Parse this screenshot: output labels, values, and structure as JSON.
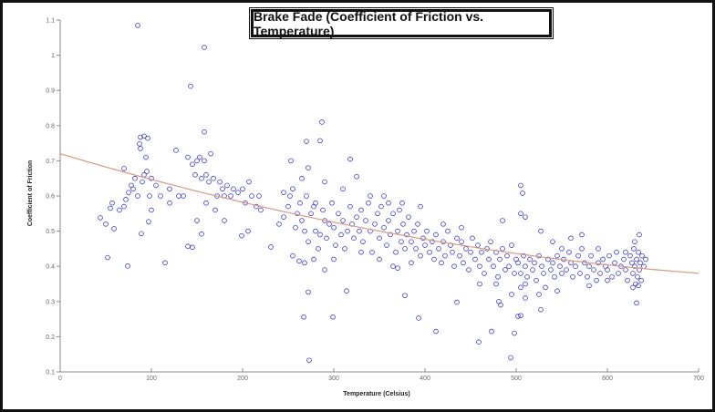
{
  "chart_data": {
    "type": "scatter",
    "title": "Brake Fade (Coefficient of Friction vs. Temperature)",
    "xlabel": "Temperature (Celsius)",
    "ylabel": "Coefficient of Friction",
    "xlim": [
      0,
      700
    ],
    "ylim": [
      0.1,
      1.1
    ],
    "xticks": [
      "0",
      "100",
      "200",
      "300",
      "400",
      "500",
      "600",
      "700"
    ],
    "yticks": [
      "0.1",
      "0.2",
      "0.3",
      "0.4",
      "0.5",
      "0.6",
      "0.7",
      "0.8",
      "0.9",
      "1",
      "1.1"
    ],
    "grid": false,
    "colors": {
      "points": "#3a3ac8",
      "trend": "#d89a80"
    },
    "trend_line": {
      "type": "quadratic",
      "coefficients": {
        "a": 4.08e-07,
        "b": -0.000771,
        "c": 0.72
      }
    },
    "points": [
      [
        85,
        1.085
      ],
      [
        158,
        1.022
      ],
      [
        143,
        0.912
      ],
      [
        287,
        0.81
      ],
      [
        158,
        0.782
      ],
      [
        270,
        0.755
      ],
      [
        285,
        0.757
      ],
      [
        88,
        0.767
      ],
      [
        92,
        0.77
      ],
      [
        96,
        0.764
      ],
      [
        88,
        0.735
      ],
      [
        87,
        0.748
      ],
      [
        94,
        0.71
      ],
      [
        70,
        0.678
      ],
      [
        273,
        0.133
      ],
      [
        267,
        0.256
      ],
      [
        299,
        0.256
      ],
      [
        459,
        0.185
      ],
      [
        494,
        0.14
      ],
      [
        473,
        0.215
      ],
      [
        412,
        0.215
      ],
      [
        498,
        0.21
      ],
      [
        393,
        0.253
      ],
      [
        502,
        0.258
      ],
      [
        272,
        0.327
      ],
      [
        314,
        0.33
      ],
      [
        378,
        0.317
      ],
      [
        435,
        0.298
      ],
      [
        527,
        0.277
      ],
      [
        632,
        0.296
      ],
      [
        52,
        0.425
      ],
      [
        74,
        0.401
      ],
      [
        115,
        0.41
      ],
      [
        44,
        0.538
      ],
      [
        50,
        0.52
      ],
      [
        59,
        0.507
      ],
      [
        97,
        0.527
      ],
      [
        89,
        0.493
      ],
      [
        155,
        0.492
      ],
      [
        140,
        0.457
      ],
      [
        145,
        0.454
      ],
      [
        199,
        0.487
      ],
      [
        206,
        0.5
      ],
      [
        231,
        0.455
      ],
      [
        255,
        0.43
      ],
      [
        262,
        0.415
      ],
      [
        325,
        0.655
      ],
      [
        272,
        0.68
      ],
      [
        318,
        0.705
      ],
      [
        253,
        0.7
      ],
      [
        505,
        0.63
      ],
      [
        507,
        0.608
      ],
      [
        540,
        0.47
      ],
      [
        55,
        0.565
      ],
      [
        57,
        0.58
      ],
      [
        65,
        0.56
      ],
      [
        70,
        0.57
      ],
      [
        72,
        0.59
      ],
      [
        75,
        0.61
      ],
      [
        78,
        0.63
      ],
      [
        80,
        0.62
      ],
      [
        82,
        0.65
      ],
      [
        85,
        0.6
      ],
      [
        90,
        0.64
      ],
      [
        92,
        0.66
      ],
      [
        95,
        0.67
      ],
      [
        98,
        0.6
      ],
      [
        100,
        0.65
      ],
      [
        105,
        0.63
      ],
      [
        110,
        0.6
      ],
      [
        120,
        0.62
      ],
      [
        127,
        0.73
      ],
      [
        130,
        0.6
      ],
      [
        135,
        0.6
      ],
      [
        140,
        0.71
      ],
      [
        145,
        0.69
      ],
      [
        148,
        0.66
      ],
      [
        150,
        0.7
      ],
      [
        153,
        0.71
      ],
      [
        155,
        0.65
      ],
      [
        158,
        0.7
      ],
      [
        160,
        0.66
      ],
      [
        163,
        0.64
      ],
      [
        165,
        0.72
      ],
      [
        168,
        0.65
      ],
      [
        172,
        0.6
      ],
      [
        175,
        0.64
      ],
      [
        178,
        0.62
      ],
      [
        180,
        0.6
      ],
      [
        183,
        0.63
      ],
      [
        187,
        0.6
      ],
      [
        190,
        0.62
      ],
      [
        195,
        0.61
      ],
      [
        200,
        0.62
      ],
      [
        203,
        0.58
      ],
      [
        207,
        0.64
      ],
      [
        210,
        0.6
      ],
      [
        215,
        0.57
      ],
      [
        218,
        0.6
      ],
      [
        220,
        0.56
      ],
      [
        150,
        0.53
      ],
      [
        170,
        0.56
      ],
      [
        180,
        0.53
      ],
      [
        160,
        0.58
      ],
      [
        120,
        0.58
      ],
      [
        100,
        0.56
      ],
      [
        240,
        0.52
      ],
      [
        245,
        0.54
      ],
      [
        250,
        0.57
      ],
      [
        252,
        0.6
      ],
      [
        255,
        0.62
      ],
      [
        258,
        0.51
      ],
      [
        260,
        0.55
      ],
      [
        263,
        0.58
      ],
      [
        265,
        0.53
      ],
      [
        268,
        0.5
      ],
      [
        270,
        0.6
      ],
      [
        272,
        0.47
      ],
      [
        275,
        0.55
      ],
      [
        278,
        0.57
      ],
      [
        280,
        0.5
      ],
      [
        283,
        0.45
      ],
      [
        285,
        0.49
      ],
      [
        288,
        0.56
      ],
      [
        290,
        0.53
      ],
      [
        292,
        0.48
      ],
      [
        295,
        0.52
      ],
      [
        298,
        0.58
      ],
      [
        300,
        0.51
      ],
      [
        302,
        0.46
      ],
      [
        305,
        0.55
      ],
      [
        308,
        0.49
      ],
      [
        310,
        0.53
      ],
      [
        312,
        0.45
      ],
      [
        315,
        0.5
      ],
      [
        318,
        0.57
      ],
      [
        320,
        0.52
      ],
      [
        322,
        0.48
      ],
      [
        325,
        0.54
      ],
      [
        328,
        0.5
      ],
      [
        330,
        0.56
      ],
      [
        332,
        0.47
      ],
      [
        335,
        0.53
      ],
      [
        338,
        0.58
      ],
      [
        340,
        0.5
      ],
      [
        342,
        0.44
      ],
      [
        345,
        0.52
      ],
      [
        348,
        0.55
      ],
      [
        350,
        0.48
      ],
      [
        352,
        0.57
      ],
      [
        355,
        0.51
      ],
      [
        358,
        0.46
      ],
      [
        360,
        0.53
      ],
      [
        362,
        0.49
      ],
      [
        365,
        0.55
      ],
      [
        368,
        0.44
      ],
      [
        370,
        0.5
      ],
      [
        372,
        0.56
      ],
      [
        374,
        0.47
      ],
      [
        376,
        0.52
      ],
      [
        378,
        0.45
      ],
      [
        380,
        0.49
      ],
      [
        382,
        0.54
      ],
      [
        385,
        0.47
      ],
      [
        388,
        0.5
      ],
      [
        390,
        0.45
      ],
      [
        392,
        0.52
      ],
      [
        395,
        0.43
      ],
      [
        398,
        0.48
      ],
      [
        400,
        0.46
      ],
      [
        360,
        0.58
      ],
      [
        375,
        0.58
      ],
      [
        395,
        0.57
      ],
      [
        340,
        0.6
      ],
      [
        355,
        0.6
      ],
      [
        330,
        0.44
      ],
      [
        350,
        0.42
      ],
      [
        365,
        0.4
      ],
      [
        385,
        0.41
      ],
      [
        370,
        0.395
      ],
      [
        300,
        0.42
      ],
      [
        290,
        0.39
      ],
      [
        278,
        0.42
      ],
      [
        268,
        0.41
      ],
      [
        280,
        0.58
      ],
      [
        310,
        0.62
      ],
      [
        290,
        0.64
      ],
      [
        265,
        0.65
      ],
      [
        245,
        0.61
      ],
      [
        402,
        0.5
      ],
      [
        405,
        0.44
      ],
      [
        408,
        0.47
      ],
      [
        410,
        0.42
      ],
      [
        412,
        0.49
      ],
      [
        415,
        0.45
      ],
      [
        418,
        0.41
      ],
      [
        420,
        0.47
      ],
      [
        422,
        0.43
      ],
      [
        425,
        0.5
      ],
      [
        428,
        0.46
      ],
      [
        430,
        0.44
      ],
      [
        432,
        0.4
      ],
      [
        435,
        0.48
      ],
      [
        438,
        0.43
      ],
      [
        440,
        0.47
      ],
      [
        442,
        0.41
      ],
      [
        445,
        0.45
      ],
      [
        448,
        0.39
      ],
      [
        450,
        0.44
      ],
      [
        452,
        0.48
      ],
      [
        455,
        0.42
      ],
      [
        458,
        0.46
      ],
      [
        460,
        0.4
      ],
      [
        462,
        0.44
      ],
      [
        465,
        0.38
      ],
      [
        468,
        0.45
      ],
      [
        470,
        0.42
      ],
      [
        472,
        0.47
      ],
      [
        475,
        0.4
      ],
      [
        478,
        0.44
      ],
      [
        480,
        0.37
      ],
      [
        482,
        0.42
      ],
      [
        485,
        0.45
      ],
      [
        488,
        0.39
      ],
      [
        490,
        0.43
      ],
      [
        492,
        0.4
      ],
      [
        495,
        0.46
      ],
      [
        498,
        0.38
      ],
      [
        500,
        0.42
      ],
      [
        420,
        0.52
      ],
      [
        440,
        0.51
      ],
      [
        485,
        0.53
      ],
      [
        505,
        0.55
      ],
      [
        510,
        0.54
      ],
      [
        460,
        0.35
      ],
      [
        478,
        0.35
      ],
      [
        481,
        0.3
      ],
      [
        483,
        0.29
      ],
      [
        495,
        0.32
      ],
      [
        505,
        0.34
      ],
      [
        502,
        0.41
      ],
      [
        505,
        0.38
      ],
      [
        508,
        0.43
      ],
      [
        510,
        0.4
      ],
      [
        512,
        0.37
      ],
      [
        515,
        0.42
      ],
      [
        518,
        0.39
      ],
      [
        520,
        0.41
      ],
      [
        522,
        0.36
      ],
      [
        525,
        0.43
      ],
      [
        528,
        0.4
      ],
      [
        530,
        0.38
      ],
      [
        532,
        0.34
      ],
      [
        535,
        0.42
      ],
      [
        538,
        0.39
      ],
      [
        540,
        0.41
      ],
      [
        542,
        0.37
      ],
      [
        545,
        0.43
      ],
      [
        548,
        0.4
      ],
      [
        550,
        0.38
      ],
      [
        552,
        0.42
      ],
      [
        555,
        0.39
      ],
      [
        558,
        0.44
      ],
      [
        560,
        0.41
      ],
      [
        562,
        0.37
      ],
      [
        565,
        0.4
      ],
      [
        568,
        0.43
      ],
      [
        570,
        0.38
      ],
      [
        572,
        0.45
      ],
      [
        575,
        0.41
      ],
      [
        578,
        0.37
      ],
      [
        580,
        0.4
      ],
      [
        582,
        0.43
      ],
      [
        585,
        0.39
      ],
      [
        588,
        0.36
      ],
      [
        590,
        0.41
      ],
      [
        592,
        0.38
      ],
      [
        595,
        0.42
      ],
      [
        598,
        0.4
      ],
      [
        600,
        0.39
      ],
      [
        602,
        0.43
      ],
      [
        605,
        0.37
      ],
      [
        608,
        0.41
      ],
      [
        610,
        0.44
      ],
      [
        612,
        0.38
      ],
      [
        615,
        0.4
      ],
      [
        618,
        0.42
      ],
      [
        620,
        0.39
      ],
      [
        622,
        0.36
      ],
      [
        625,
        0.43
      ],
      [
        627,
        0.41
      ],
      [
        628,
        0.38
      ],
      [
        629,
        0.45
      ],
      [
        630,
        0.4
      ],
      [
        631,
        0.35
      ],
      [
        632,
        0.42
      ],
      [
        633,
        0.37
      ],
      [
        634,
        0.44
      ],
      [
        635,
        0.39
      ],
      [
        636,
        0.41
      ],
      [
        637,
        0.36
      ],
      [
        638,
        0.43
      ],
      [
        640,
        0.4
      ],
      [
        642,
        0.42
      ],
      [
        630,
        0.47
      ],
      [
        635,
        0.49
      ],
      [
        628,
        0.34
      ],
      [
        634,
        0.345
      ],
      [
        572,
        0.49
      ],
      [
        560,
        0.48
      ],
      [
        527,
        0.5
      ],
      [
        510,
        0.35
      ],
      [
        545,
        0.33
      ],
      [
        580,
        0.345
      ],
      [
        600,
        0.36
      ],
      [
        620,
        0.44
      ],
      [
        590,
        0.45
      ],
      [
        550,
        0.45
      ],
      [
        525,
        0.32
      ],
      [
        510,
        0.31
      ],
      [
        505,
        0.26
      ]
    ]
  }
}
